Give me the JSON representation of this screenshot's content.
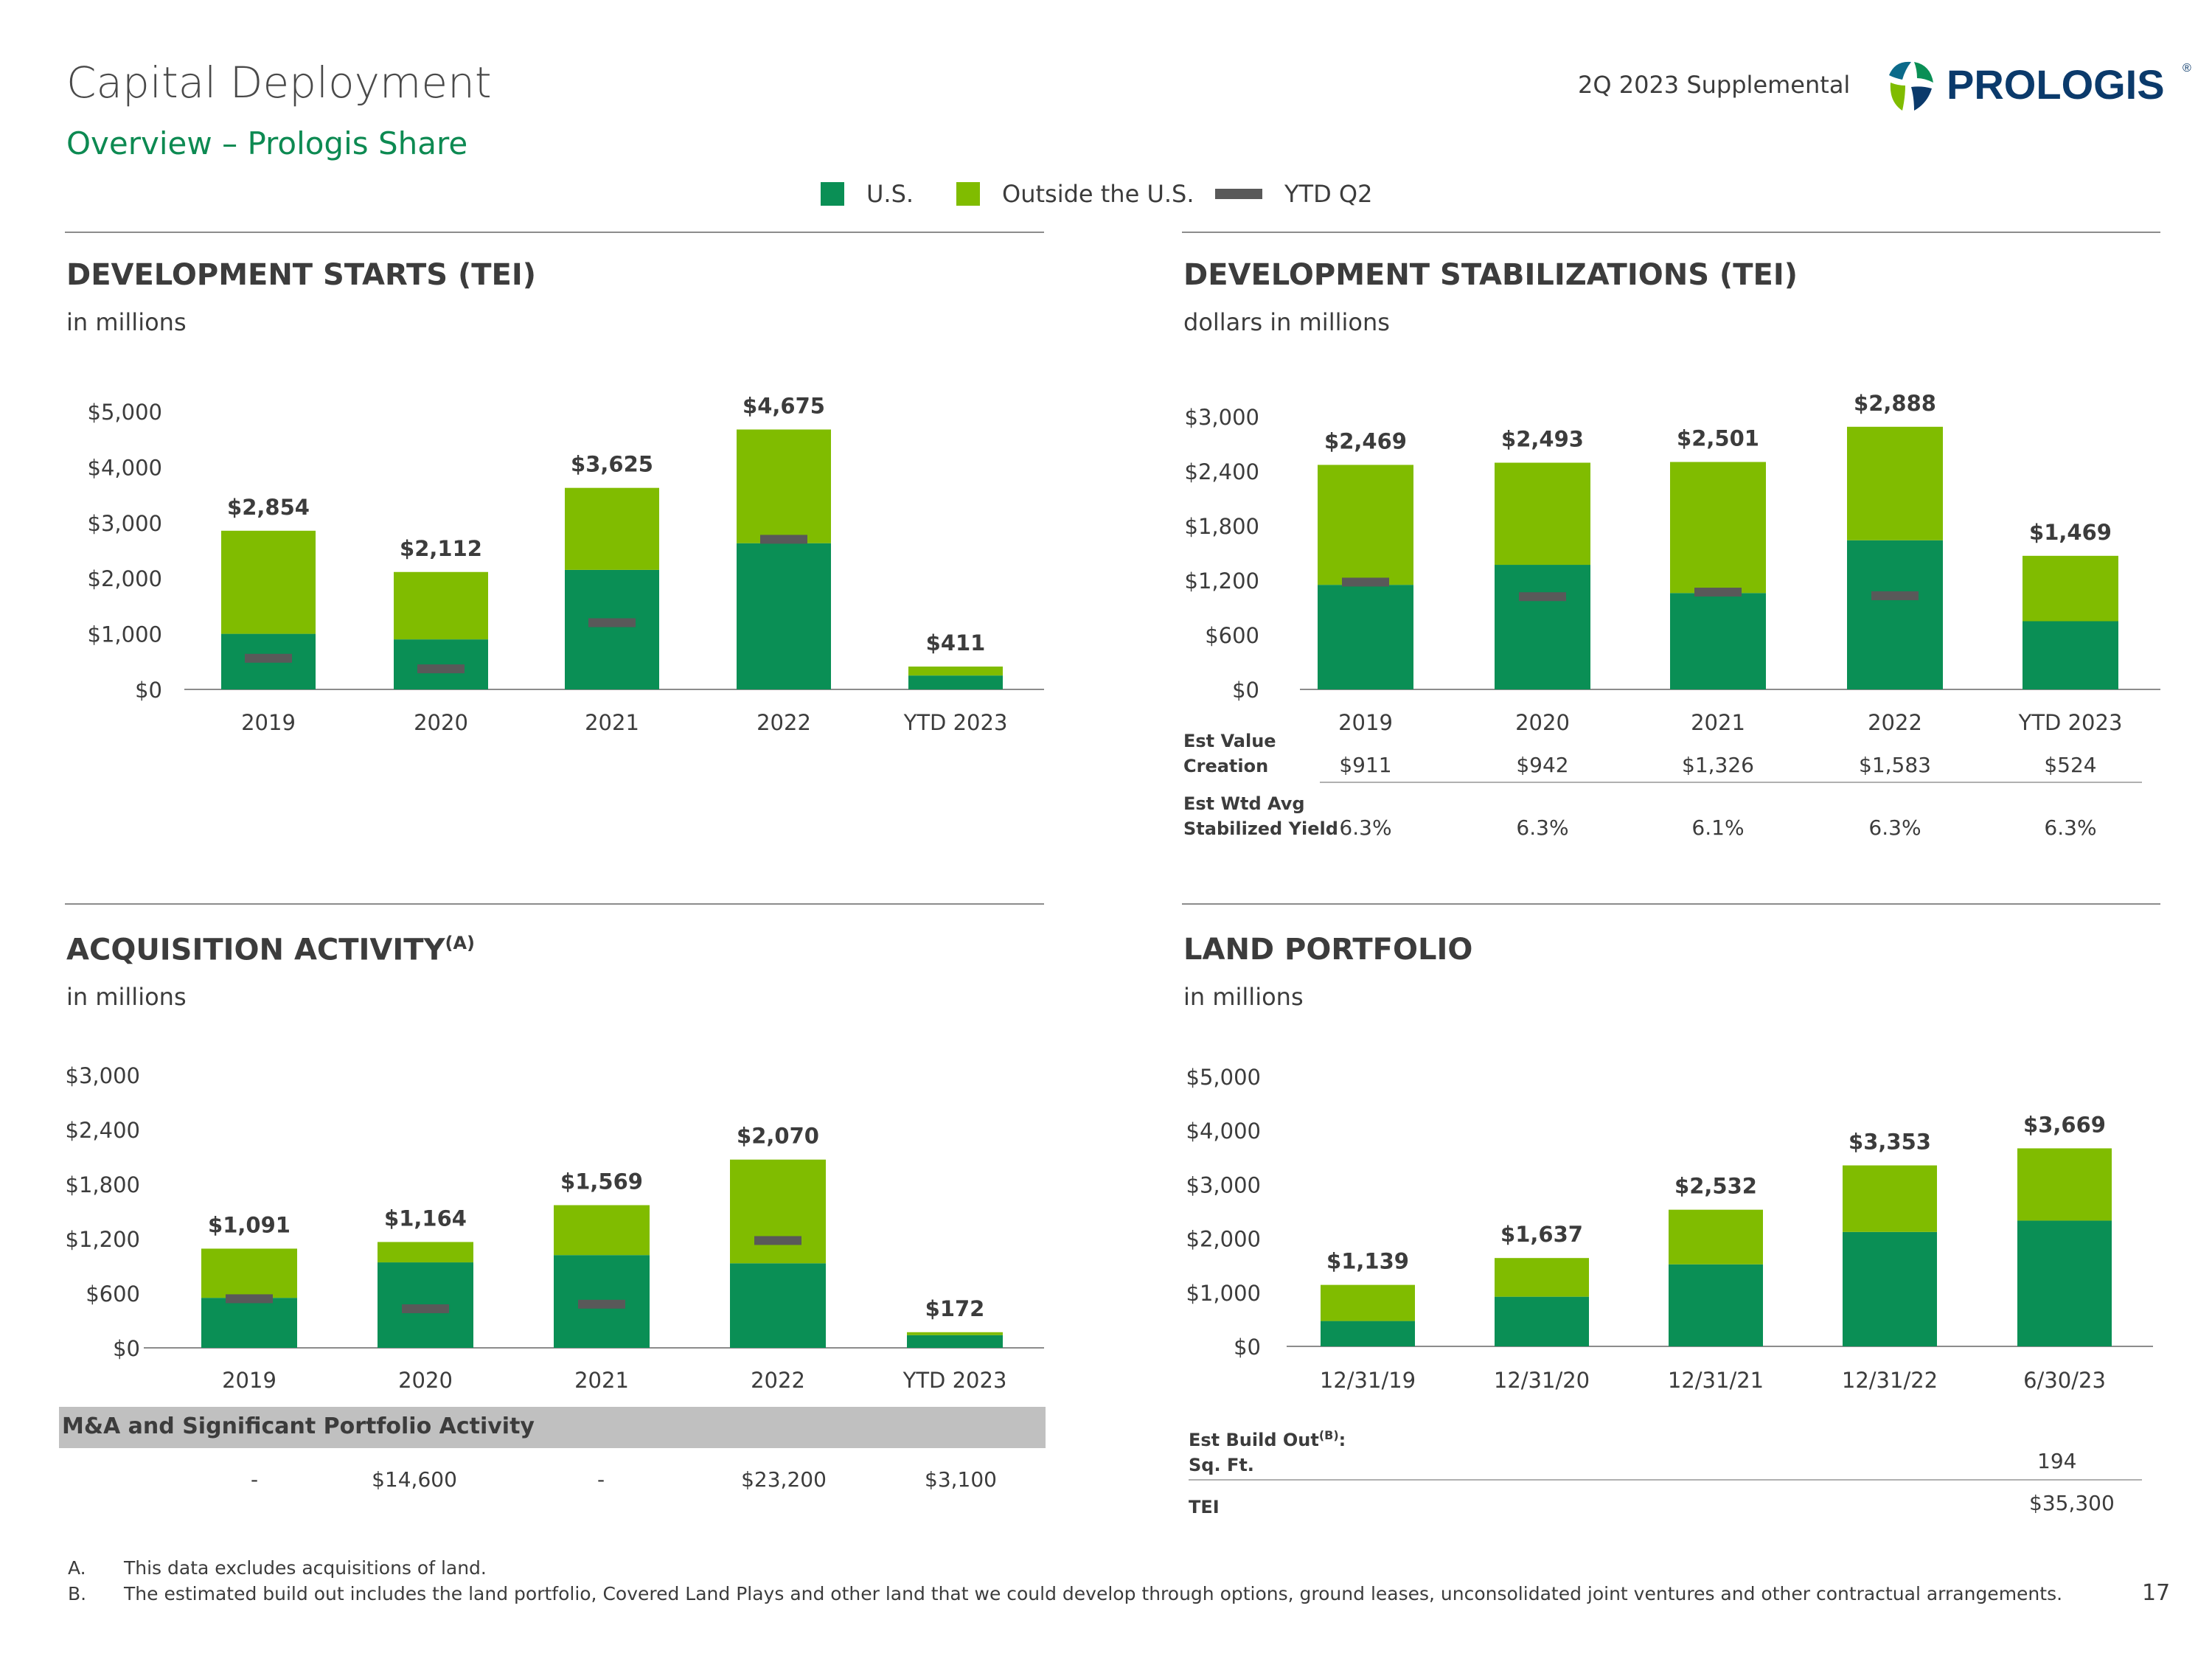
{
  "header": {
    "title": "Capital Deployment",
    "subtitle": "Overview – Prologis Share",
    "supplemental": "2Q 2023 Supplemental",
    "logo_text_bold": "PRO",
    "logo_text_light": "LOGIS",
    "logo_reg": "®"
  },
  "legend": {
    "us": "U.S.",
    "outside": "Outside the U.S.",
    "ytd": "YTD Q2"
  },
  "colors": {
    "us": "#0a8f55",
    "outside": "#80bc00",
    "ytd_marker": "#595959"
  },
  "sections": {
    "dev_starts": {
      "heading": "DEVELOPMENT STARTS (TEI)",
      "sub": "in millions"
    },
    "dev_stab": {
      "heading": "DEVELOPMENT STABILIZATIONS (TEI)",
      "sub": "dollars in millions"
    },
    "acq": {
      "heading": "ACQUISITION ACTIVITY",
      "heading_sup": "(A)",
      "sub": "in millions"
    },
    "land": {
      "heading": "LAND PORTFOLIO",
      "sub": "in millions"
    }
  },
  "chart_data": [
    {
      "id": "dev_starts",
      "type": "bar",
      "stacked": true,
      "categories": [
        "2019",
        "2020",
        "2021",
        "2022",
        "YTD 2023"
      ],
      "series": [
        {
          "name": "U.S.",
          "values": [
            1000,
            900,
            2150,
            2630,
            250
          ]
        },
        {
          "name": "Outside the U.S.",
          "values": [
            1854,
            1212,
            1475,
            2045,
            161
          ]
        }
      ],
      "totals": [
        "$2,854",
        "$2,112",
        "$3,625",
        "$4,675",
        "$411"
      ],
      "ytd_q2": [
        560,
        370,
        1200,
        2700,
        null
      ],
      "yticks": [
        "$0",
        "$1,000",
        "$2,000",
        "$3,000",
        "$4,000",
        "$5,000"
      ],
      "ylim": [
        0,
        5000
      ]
    },
    {
      "id": "dev_stab",
      "type": "bar",
      "stacked": true,
      "categories": [
        "2019",
        "2020",
        "2021",
        "2022",
        "YTD 2023"
      ],
      "series": [
        {
          "name": "U.S.",
          "values": [
            1150,
            1370,
            1060,
            1640,
            750
          ]
        },
        {
          "name": "Outside the U.S.",
          "values": [
            1319,
            1123,
            1441,
            1248,
            719
          ]
        }
      ],
      "totals": [
        "$2,469",
        "$2,493",
        "$2,501",
        "$2,888",
        "$1,469"
      ],
      "ytd_q2": [
        1180,
        1020,
        1070,
        1030,
        null
      ],
      "yticks": [
        "$0",
        "$600",
        "$1,200",
        "$1,800",
        "$2,400",
        "$3,000"
      ],
      "ylim": [
        0,
        3000
      ]
    },
    {
      "id": "acq",
      "type": "bar",
      "stacked": true,
      "categories": [
        "2019",
        "2020",
        "2021",
        "2022",
        "YTD 2023"
      ],
      "series": [
        {
          "name": "U.S.",
          "values": [
            550,
            940,
            1020,
            930,
            140
          ]
        },
        {
          "name": "Outside the U.S.",
          "values": [
            541,
            224,
            549,
            1140,
            32
          ]
        }
      ],
      "totals": [
        "$1,091",
        "$1,164",
        "$1,569",
        "$2,070",
        "$172"
      ],
      "ytd_q2": [
        540,
        430,
        480,
        1180,
        null
      ],
      "yticks": [
        "$0",
        "$600",
        "$1,200",
        "$1,800",
        "$2,400",
        "$3,000"
      ],
      "ylim": [
        0,
        3000
      ]
    },
    {
      "id": "land",
      "type": "bar",
      "stacked": true,
      "categories": [
        "12/31/19",
        "12/31/20",
        "12/31/21",
        "12/31/22",
        "6/30/23"
      ],
      "series": [
        {
          "name": "U.S.",
          "values": [
            470,
            920,
            1520,
            2120,
            2330
          ]
        },
        {
          "name": "Outside the U.S.",
          "values": [
            669,
            717,
            1012,
            1233,
            1339
          ]
        }
      ],
      "totals": [
        "$1,139",
        "$1,637",
        "$2,532",
        "$3,353",
        "$3,669"
      ],
      "ytd_q2": [
        null,
        null,
        null,
        null,
        null
      ],
      "yticks": [
        "$0",
        "$1,000",
        "$2,000",
        "$3,000",
        "$4,000",
        "$5,000"
      ],
      "ylim": [
        0,
        5000
      ]
    }
  ],
  "stab_table": {
    "row1_label_a": "Est Value",
    "row1_label_b": "Creation",
    "row1_values": [
      "$911",
      "$942",
      "$1,326",
      "$1,583",
      "$524"
    ],
    "row2_label_a": "Est Wtd Avg",
    "row2_label_b": "Stabilized Yield",
    "row2_values": [
      "6.3%",
      "6.3%",
      "6.1%",
      "6.3%",
      "6.3%"
    ]
  },
  "acq_table": {
    "band_label": "M&A and Significant Portfolio Activity",
    "values": [
      "-",
      "$14,600",
      "-",
      "$23,200",
      "$3,100"
    ]
  },
  "land_table": {
    "label_a": "Est Build Out",
    "label_sup": "(B)",
    "label_colon": ":",
    "label_b": "Sq. Ft.",
    "sqft_value": "194",
    "tei_label": "TEI",
    "tei_value": "$35,300"
  },
  "footnotes": {
    "a_marker": "A.",
    "a_text": "This data excludes acquisitions of land.",
    "b_marker": "B.",
    "b_text": "The estimated build out includes the land portfolio, Covered Land Plays and other land that we could develop through options, ground leases, unconsolidated joint ventures and other contractual arrangements."
  },
  "page_number": "17"
}
